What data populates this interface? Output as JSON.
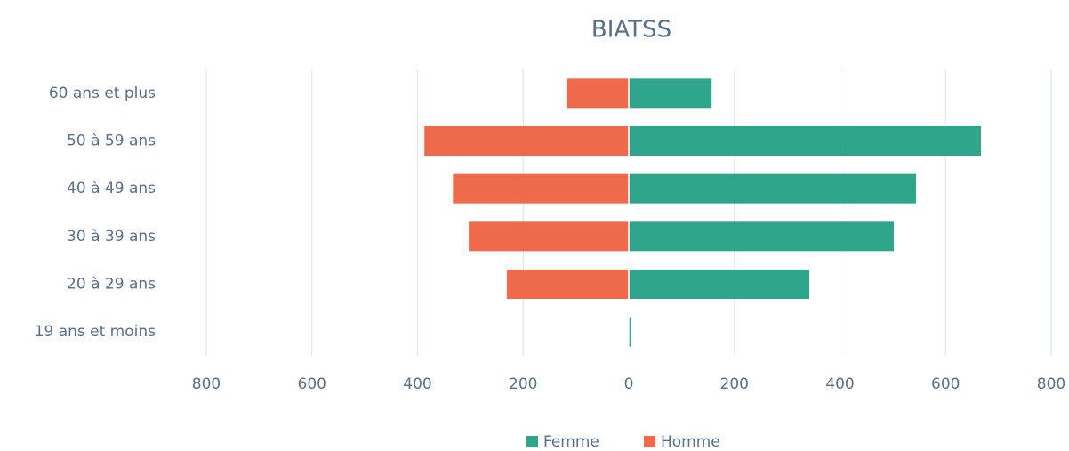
{
  "chart_data": {
    "type": "pyramid",
    "title": "BIATSS",
    "categories": [
      "60 ans et plus",
      "50 à 59 ans",
      "40 à 49 ans",
      "30 à 39 ans",
      "20 à 29 ans",
      "19 ans et moins"
    ],
    "series": [
      {
        "name": "Femme",
        "color": "#2fa58b",
        "values": [
          157,
          667,
          544,
          502,
          342,
          5
        ]
      },
      {
        "name": "Homme",
        "color": "#ee6a4a",
        "values": [
          -118,
          -387,
          -333,
          -303,
          -231,
          0
        ]
      }
    ],
    "xlim": [
      -800,
      800
    ],
    "xticks": [
      {
        "value": -800,
        "label": "800"
      },
      {
        "value": -600,
        "label": "600"
      },
      {
        "value": -400,
        "label": "400"
      },
      {
        "value": -200,
        "label": "200"
      },
      0,
      200,
      400,
      600,
      800
    ],
    "grid": true,
    "legend": "bottom"
  }
}
